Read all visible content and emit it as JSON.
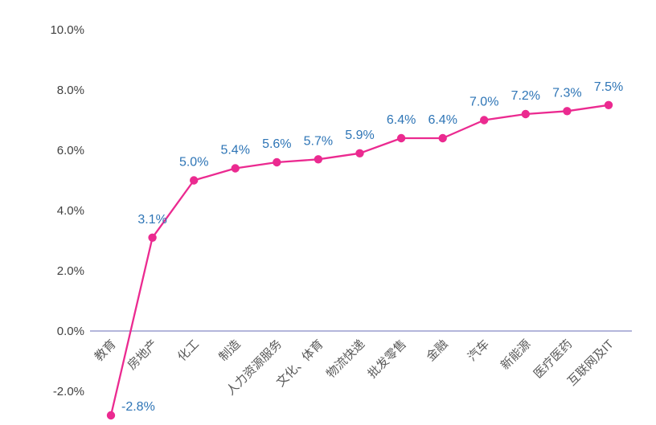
{
  "chart_data": {
    "type": "line",
    "title": "",
    "xlabel": "",
    "ylabel": "",
    "legend": "none",
    "grid": false,
    "categories": [
      "教育",
      "房地产",
      "化工",
      "制造",
      "人力资源服务",
      "文化、体育",
      "物流快递",
      "批发零售",
      "金融",
      "汽车",
      "新能源",
      "医疗医药",
      "互联网及IT"
    ],
    "values": [
      -2.8,
      3.1,
      5.0,
      5.4,
      5.6,
      5.7,
      5.9,
      6.4,
      6.4,
      7.0,
      7.2,
      7.3,
      7.5
    ],
    "data_labels": [
      "-2.8%",
      "3.1%",
      "5.0%",
      "5.4%",
      "5.6%",
      "5.7%",
      "5.9%",
      "6.4%",
      "6.4%",
      "7.0%",
      "7.2%",
      "7.3%",
      "7.5%"
    ],
    "y_axis": {
      "tick_labels": [
        "10.0%",
        "8.0%",
        "6.0%",
        "4.0%",
        "2.0%",
        "0.0%",
        "-2.0%"
      ],
      "tick_values": [
        10,
        8,
        6,
        4,
        2,
        0,
        -2
      ],
      "ylim": [
        -3.2,
        10.8
      ],
      "zero_baseline": true
    },
    "colors": {
      "series_line": "#EB2A90",
      "marker": "#EB2A90",
      "data_label": "#2E75B6",
      "axis_line": "#9A9ECF",
      "y_tick_text": "#404040",
      "category_text": "#595959",
      "background": "#FFFFFF"
    }
  }
}
